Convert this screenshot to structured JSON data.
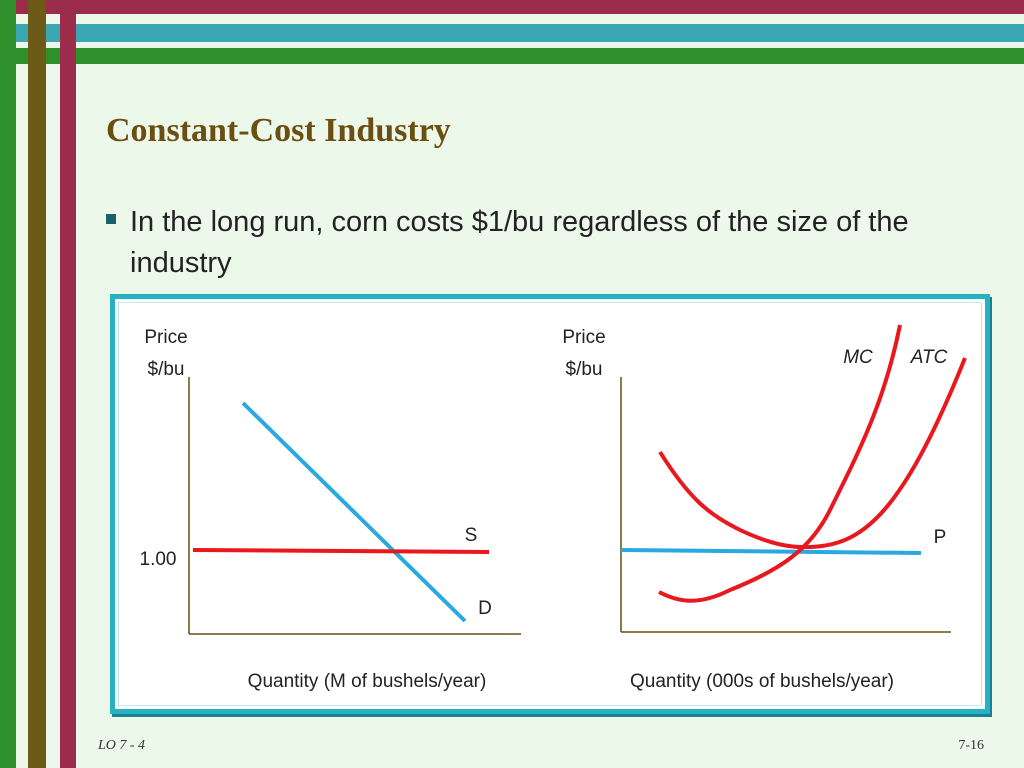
{
  "title": "Constant-Cost Industry",
  "bullet": "In the long run, corn costs $1/bu regardless of the size of the industry",
  "colors": {
    "maroon": "#9b2c4a",
    "teal": "#3aa7b3",
    "green": "#2f8f2a",
    "olive": "#6b5a18",
    "frame": "#27b2c4",
    "red_curve": "#e8181e",
    "blue_curve": "#2aa8e0"
  },
  "left_chart": {
    "y_label_line1": "Price",
    "y_label_line2": "$/bu",
    "x_label": "Quantity (M of bushels/year)",
    "price_tick": "1.00",
    "supply_label": "S",
    "demand_label": "D"
  },
  "right_chart": {
    "y_label_line1": "Price",
    "y_label_line2": "$/bu",
    "x_label": "Quantity (000s of bushels/year)",
    "mc_label": "MC",
    "atc_label": "ATC",
    "price_label": "P"
  },
  "footer": {
    "left": "LO 7 - 4",
    "right": "7-16"
  }
}
